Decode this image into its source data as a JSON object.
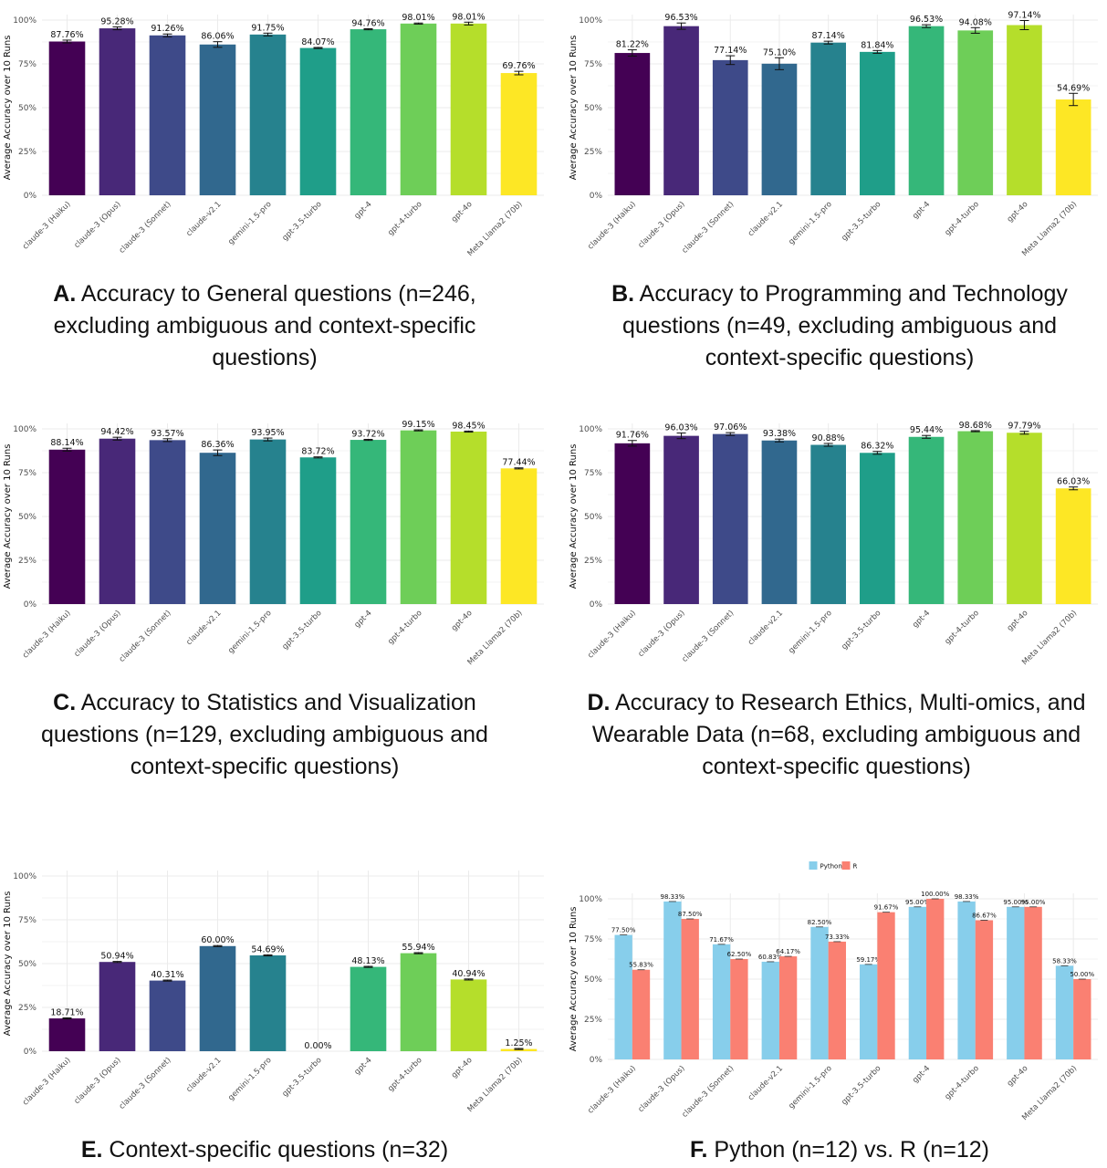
{
  "colors": {
    "viridis": [
      "#440154",
      "#482878",
      "#3e4a89",
      "#31688e",
      "#26828e",
      "#1f9e89",
      "#35b779",
      "#6ece58",
      "#b5de2b",
      "#fde725"
    ],
    "python": "#87ceeb",
    "r": "#fa8072"
  },
  "chart_data": [
    {
      "type": "bar",
      "id": "A",
      "ylabel": "Average Accuracy over 10 Runs",
      "ylim": [
        0,
        100
      ],
      "yticks": [
        "0%",
        "25%",
        "50%",
        "75%",
        "100%"
      ],
      "categories": [
        "claude-3 (Haiku)",
        "claude-3 (Opus)",
        "claude-3 (Sonnet)",
        "claude-v2.1",
        "gemini-1.5-pro",
        "gpt-3.5-turbo",
        "gpt-4",
        "gpt-4-turbo",
        "gpt-4o",
        "Meta Llama2 (70b)"
      ],
      "values": [
        87.76,
        95.28,
        91.26,
        86.06,
        91.75,
        84.07,
        94.76,
        98.01,
        98.01,
        69.76
      ],
      "labels": [
        "87.76%",
        "95.28%",
        "91.26%",
        "86.06%",
        "91.75%",
        "84.07%",
        "94.76%",
        "98.01%",
        "98.01%",
        "69.76%"
      ],
      "errors": [
        0.8,
        0.8,
        0.8,
        1.6,
        0.8,
        0.3,
        0.3,
        0.3,
        0.8,
        1.0
      ],
      "caption_tag": "A.",
      "caption": "Accuracy to General questions (n=246, excluding ambiguous and context-specific questions)"
    },
    {
      "type": "bar",
      "id": "B",
      "ylabel": "Average Accuracy over 10 Runs",
      "ylim": [
        0,
        100
      ],
      "yticks": [
        "0%",
        "25%",
        "50%",
        "75%",
        "100%"
      ],
      "categories": [
        "claude-3 (Haiku)",
        "claude-3 (Opus)",
        "claude-3 (Sonnet)",
        "claude-v2.1",
        "gemini-1.5-pro",
        "gpt-3.5-turbo",
        "gpt-4",
        "gpt-4-turbo",
        "gpt-4o",
        "Meta Llama2 (70b)"
      ],
      "values": [
        81.22,
        96.53,
        77.14,
        75.1,
        87.14,
        81.84,
        96.53,
        94.08,
        97.14,
        54.69
      ],
      "labels": [
        "81.22%",
        "96.53%",
        "77.14%",
        "75.10%",
        "87.14%",
        "81.84%",
        "96.53%",
        "94.08%",
        "97.14%",
        "54.69%"
      ],
      "errors": [
        1.8,
        1.8,
        2.5,
        3.4,
        0.8,
        0.8,
        0.8,
        1.6,
        2.6,
        3.5
      ],
      "caption_tag": "B.",
      "caption": "Accuracy to Programming and Technology questions (n=49, excluding ambiguous and context-specific questions)"
    },
    {
      "type": "bar",
      "id": "C",
      "ylabel": "Average Accuracy over 10 Runs",
      "ylim": [
        0,
        100
      ],
      "yticks": [
        "0%",
        "25%",
        "50%",
        "75%",
        "100%"
      ],
      "categories": [
        "claude-3 (Haiku)",
        "claude-3 (Opus)",
        "claude-3 (Sonnet)",
        "claude-v2.1",
        "gemini-1.5-pro",
        "gpt-3.5-turbo",
        "gpt-4",
        "gpt-4-turbo",
        "gpt-4o",
        "Meta Llama2 (70b)"
      ],
      "values": [
        88.14,
        94.42,
        93.57,
        86.36,
        93.95,
        83.72,
        93.72,
        99.15,
        98.45,
        77.44
      ],
      "labels": [
        "88.14%",
        "94.42%",
        "93.57%",
        "86.36%",
        "93.95%",
        "83.72%",
        "93.72%",
        "99.15%",
        "98.45%",
        "77.44%"
      ],
      "errors": [
        0.8,
        0.8,
        0.8,
        1.6,
        0.8,
        0.3,
        0.3,
        0.3,
        0.3,
        0.3
      ],
      "caption_tag": "C.",
      "caption": "Accuracy to Statistics and Visualization questions (n=129, excluding ambiguous and context-specific questions)"
    },
    {
      "type": "bar",
      "id": "D",
      "ylabel": "Average Accuracy over 10 Runs",
      "ylim": [
        0,
        100
      ],
      "yticks": [
        "0%",
        "25%",
        "50%",
        "75%",
        "100%"
      ],
      "categories": [
        "claude-3 (Haiku)",
        "claude-3 (Opus)",
        "claude-3 (Sonnet)",
        "claude-v2.1",
        "gemini-1.5-pro",
        "gpt-3.5-turbo",
        "gpt-4",
        "gpt-4-turbo",
        "gpt-4o",
        "Meta Llama2 (70b)"
      ],
      "values": [
        91.76,
        96.03,
        97.06,
        93.38,
        90.88,
        86.32,
        95.44,
        98.68,
        97.79,
        66.03
      ],
      "labels": [
        "91.76%",
        "96.03%",
        "97.06%",
        "93.38%",
        "90.88%",
        "86.32%",
        "95.44%",
        "98.68%",
        "97.79%",
        "66.03%"
      ],
      "errors": [
        1.6,
        1.6,
        0.8,
        0.8,
        0.8,
        0.8,
        0.8,
        0.3,
        0.8,
        0.8
      ],
      "caption_tag": "D.",
      "caption": "Accuracy to Research Ethics, Multi-omics, and Wearable Data (n=68, excluding ambiguous and context-specific questions)"
    },
    {
      "type": "bar",
      "id": "E",
      "ylabel": "Average Accuracy over 10 Runs",
      "ylim": [
        0,
        100
      ],
      "yticks": [
        "0%",
        "25%",
        "50%",
        "75%",
        "100%"
      ],
      "categories": [
        "claude-3 (Haiku)",
        "claude-3 (Opus)",
        "claude-3 (Sonnet)",
        "claude-v2.1",
        "gemini-1.5-pro",
        "gpt-3.5-turbo",
        "gpt-4",
        "gpt-4-turbo",
        "gpt-4o",
        "Meta Llama2 (70b)"
      ],
      "values": [
        18.71,
        50.94,
        40.31,
        60.0,
        54.69,
        0.0,
        48.13,
        55.94,
        40.94,
        1.25
      ],
      "labels": [
        "18.71%",
        "50.94%",
        "40.31%",
        "60.00%",
        "54.69%",
        "0.00%",
        "48.13%",
        "55.94%",
        "40.94%",
        "1.25%"
      ],
      "errors": [
        0.3,
        0.3,
        0.3,
        0.3,
        0.3,
        0,
        0.3,
        0.3,
        0.3,
        0.3
      ],
      "caption_tag": "E.",
      "caption": "Context-specific questions (n=32)"
    },
    {
      "type": "bar",
      "id": "F",
      "ylabel": "Average Accuracy over 10 Runs",
      "ylim": [
        0,
        100
      ],
      "yticks": [
        "0%",
        "25%",
        "50%",
        "75%",
        "100%"
      ],
      "categories": [
        "claude-3 (Haiku)",
        "claude-3 (Opus)",
        "claude-3 (Sonnet)",
        "claude-v2.1",
        "gemini-1.5-pro",
        "gpt-3.5-turbo",
        "gpt-4",
        "gpt-4-turbo",
        "gpt-4o",
        "Meta Llama2 (70b)"
      ],
      "legend_position": "top",
      "series": [
        {
          "name": "Python",
          "values": [
            77.5,
            98.33,
            71.67,
            60.83,
            82.5,
            59.17,
            95.0,
            98.33,
            95.0,
            58.33
          ],
          "labels": [
            "77.50%",
            "98.33%",
            "71.67%",
            "60.83%",
            "82.50%",
            "59.17%",
            "95.00%",
            "98.33%",
            "95.00%",
            "58.33%"
          ]
        },
        {
          "name": "R",
          "values": [
            55.83,
            87.5,
            62.5,
            64.17,
            73.33,
            91.67,
            100.0,
            86.67,
            95.0,
            50.0
          ],
          "labels": [
            "55.83%",
            "87.50%",
            "62.50%",
            "64.17%",
            "73.33%",
            "91.67%",
            "100.00%",
            "86.67%",
            "95.00%",
            "50.00%"
          ]
        }
      ],
      "caption_tag": "F.",
      "caption": "Python (n=12) vs. R (n=12)"
    }
  ]
}
